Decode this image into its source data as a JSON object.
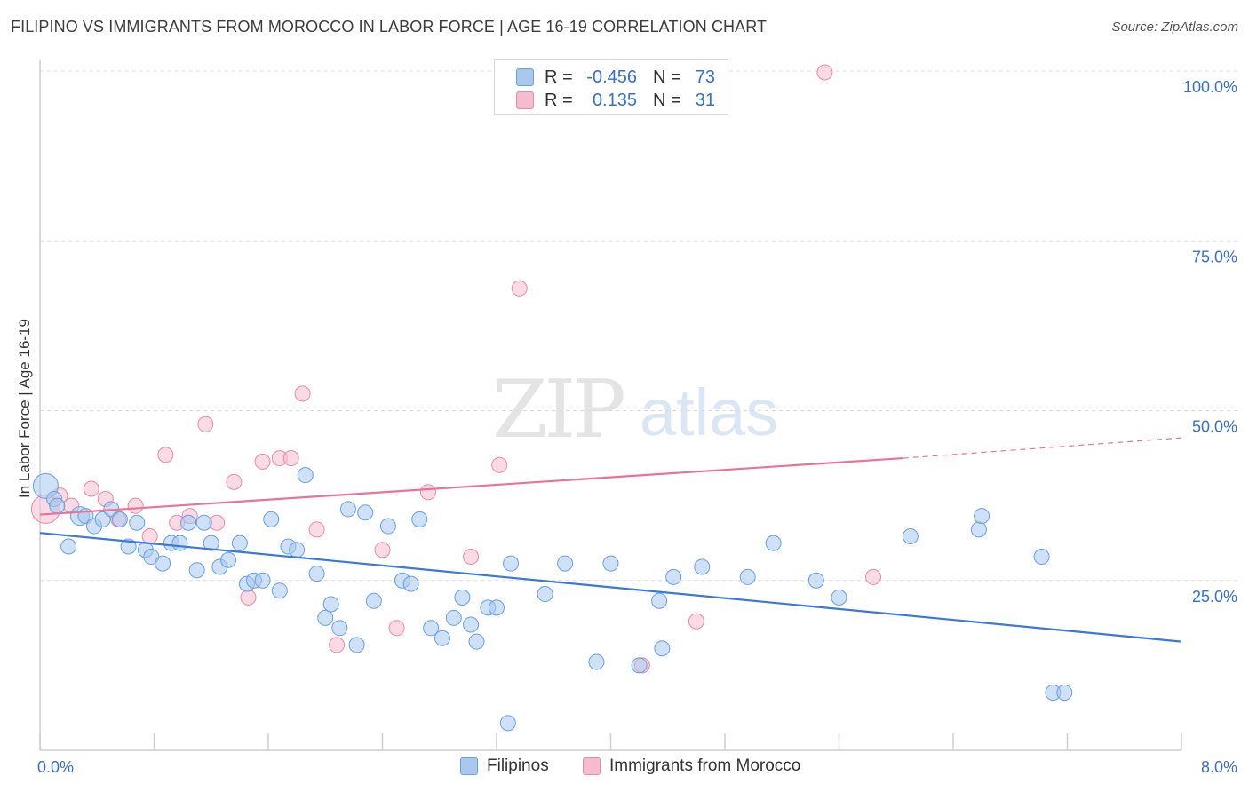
{
  "header": {
    "title": "FILIPINO VS IMMIGRANTS FROM MOROCCO IN LABOR FORCE | AGE 16-19 CORRELATION CHART",
    "source": "Source: ZipAtlas.com"
  },
  "watermark": {
    "zip": "ZIP",
    "atlas": "atlas"
  },
  "legend": {
    "rows": [
      {
        "r_label": "R =",
        "r_value": "-0.456",
        "n_label": "N =",
        "n_value": "73",
        "color": "#a8c8f0",
        "border": "#6a9fe0"
      },
      {
        "r_label": "R =",
        "r_value": "0.135",
        "n_label": "N =",
        "n_value": "31",
        "color": "#f5bcd0",
        "border": "#e88aa8"
      }
    ],
    "bottom": [
      {
        "label": "Filipinos",
        "color": "#a8c8f0",
        "border": "#6a9fe0"
      },
      {
        "label": "Immigrants from Morocco",
        "color": "#f5bcd0",
        "border": "#e88aa8"
      }
    ]
  },
  "chart_data": {
    "type": "scatter",
    "title": "FILIPINO VS IMMIGRANTS FROM MOROCCO IN LABOR FORCE | AGE 16-19 CORRELATION CHART",
    "xlabel": "",
    "ylabel": "In Labor Force | Age 16-19",
    "xlim": [
      0,
      8
    ],
    "ylim": [
      0,
      105
    ],
    "x_tick_labels": [
      "0.0%",
      "8.0%"
    ],
    "y_ticks": [
      25,
      50,
      75,
      100
    ],
    "y_tick_labels": [
      "25.0%",
      "50.0%",
      "75.0%",
      "100.0%"
    ],
    "grid": "horizontal-dashed",
    "colors": {
      "filipinos": "#3b78d8",
      "morocco": "#e8739a",
      "tick_text": "#3b6fc4"
    },
    "series": [
      {
        "name": "Filipinos",
        "trend": {
          "x": [
            0,
            8
          ],
          "y": [
            32.0,
            16.0
          ]
        },
        "points": [
          [
            0.04,
            38.9
          ],
          [
            0.1,
            37.0
          ],
          [
            0.12,
            36.0
          ],
          [
            0.2,
            30.0
          ],
          [
            0.28,
            34.5
          ],
          [
            0.32,
            34.5
          ],
          [
            0.38,
            33.0
          ],
          [
            0.44,
            34.0
          ],
          [
            0.5,
            35.5
          ],
          [
            0.56,
            34.0
          ],
          [
            0.62,
            30.0
          ],
          [
            0.68,
            33.5
          ],
          [
            0.74,
            29.5
          ],
          [
            0.78,
            28.5
          ],
          [
            0.86,
            27.5
          ],
          [
            0.92,
            30.5
          ],
          [
            0.98,
            30.5
          ],
          [
            1.04,
            33.5
          ],
          [
            1.1,
            26.5
          ],
          [
            1.15,
            33.5
          ],
          [
            1.2,
            30.5
          ],
          [
            1.26,
            27.0
          ],
          [
            1.32,
            28.0
          ],
          [
            1.4,
            30.5
          ],
          [
            1.45,
            24.5
          ],
          [
            1.5,
            25.0
          ],
          [
            1.56,
            25.0
          ],
          [
            1.62,
            34.0
          ],
          [
            1.68,
            23.5
          ],
          [
            1.74,
            30.0
          ],
          [
            1.8,
            29.5
          ],
          [
            1.86,
            40.5
          ],
          [
            1.94,
            26.0
          ],
          [
            2.0,
            19.5
          ],
          [
            2.04,
            21.5
          ],
          [
            2.1,
            18.0
          ],
          [
            2.16,
            35.5
          ],
          [
            2.22,
            15.5
          ],
          [
            2.28,
            35.0
          ],
          [
            2.34,
            22.0
          ],
          [
            2.44,
            33.0
          ],
          [
            2.54,
            25.0
          ],
          [
            2.6,
            24.5
          ],
          [
            2.66,
            34.0
          ],
          [
            2.74,
            18.0
          ],
          [
            2.82,
            16.5
          ],
          [
            2.9,
            19.5
          ],
          [
            2.96,
            22.5
          ],
          [
            3.02,
            18.5
          ],
          [
            3.06,
            16.0
          ],
          [
            3.14,
            21.0
          ],
          [
            3.2,
            21.0
          ],
          [
            3.28,
            4.0
          ],
          [
            3.3,
            27.5
          ],
          [
            3.54,
            23.0
          ],
          [
            3.68,
            27.5
          ],
          [
            3.9,
            13.0
          ],
          [
            4.0,
            27.5
          ],
          [
            4.2,
            12.5
          ],
          [
            4.34,
            22.0
          ],
          [
            4.36,
            15.0
          ],
          [
            4.44,
            25.5
          ],
          [
            4.64,
            27.0
          ],
          [
            4.96,
            25.5
          ],
          [
            5.14,
            30.5
          ],
          [
            5.44,
            25.0
          ],
          [
            5.6,
            22.5
          ],
          [
            6.1,
            31.5
          ],
          [
            6.58,
            32.5
          ],
          [
            6.6,
            34.5
          ],
          [
            7.02,
            28.5
          ],
          [
            7.1,
            8.5
          ],
          [
            7.18,
            8.5
          ]
        ]
      },
      {
        "name": "Immigrants from Morocco",
        "trend": {
          "x": [
            0,
            6.05
          ],
          "y": [
            34.7,
            43.0
          ],
          "dashed_to": {
            "x": 8,
            "y": 46.0
          }
        },
        "points": [
          [
            0.04,
            35.5
          ],
          [
            0.14,
            37.5
          ],
          [
            0.22,
            36.0
          ],
          [
            0.36,
            38.5
          ],
          [
            0.46,
            37.0
          ],
          [
            0.55,
            34.0
          ],
          [
            0.67,
            36.0
          ],
          [
            0.77,
            31.5
          ],
          [
            0.88,
            43.5
          ],
          [
            0.96,
            33.5
          ],
          [
            1.05,
            34.5
          ],
          [
            1.16,
            48.0
          ],
          [
            1.24,
            33.5
          ],
          [
            1.36,
            39.5
          ],
          [
            1.46,
            22.5
          ],
          [
            1.56,
            42.5
          ],
          [
            1.68,
            43.0
          ],
          [
            1.76,
            43.0
          ],
          [
            1.84,
            52.5
          ],
          [
            1.94,
            32.5
          ],
          [
            2.08,
            15.5
          ],
          [
            2.4,
            29.5
          ],
          [
            2.5,
            18.0
          ],
          [
            2.72,
            38.0
          ],
          [
            3.02,
            28.5
          ],
          [
            3.22,
            42.0
          ],
          [
            3.36,
            68.0
          ],
          [
            4.22,
            12.5
          ],
          [
            4.6,
            19.0
          ],
          [
            5.5,
            99.8
          ],
          [
            5.84,
            25.5
          ]
        ]
      }
    ]
  }
}
